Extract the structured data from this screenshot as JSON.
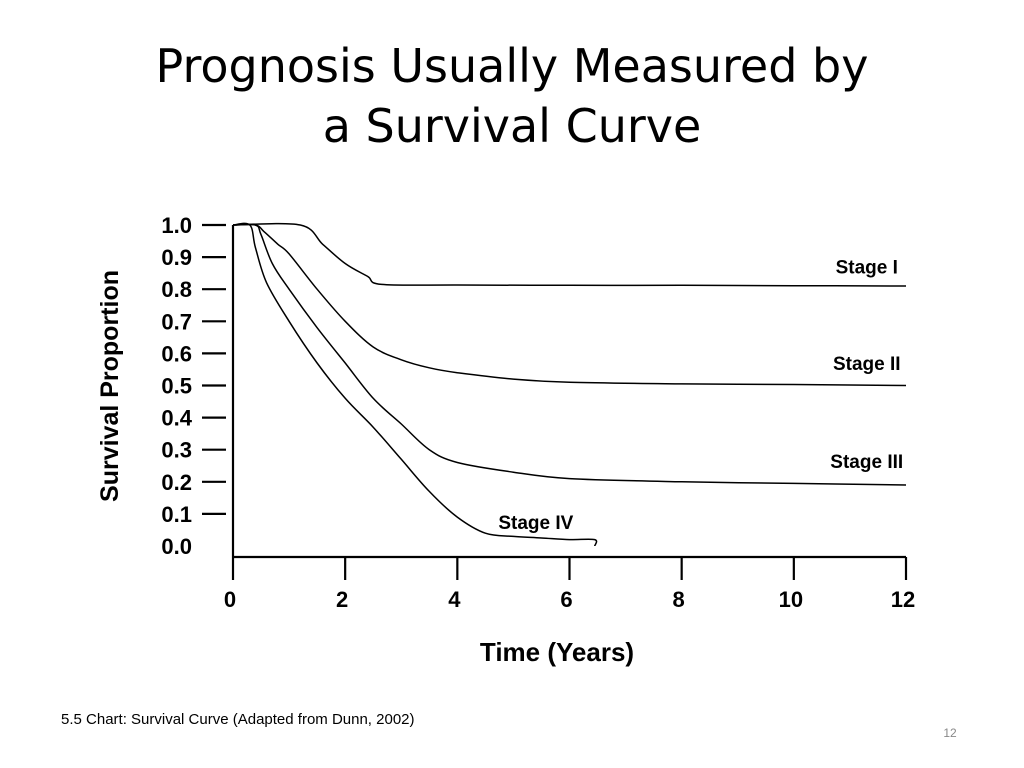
{
  "slide": {
    "title_lines": [
      "Prognosis Usually Measured by",
      "a Survival Curve"
    ],
    "caption": "5.5  Chart: Survival Curve (Adapted from Dunn, 2002)",
    "page_number": "12"
  },
  "chart_data": {
    "type": "line",
    "xlabel": "Time (Years)",
    "ylabel": "Survival Proportion",
    "xlim": [
      0,
      12
    ],
    "ylim": [
      0,
      1
    ],
    "x_ticks": [
      "0",
      "2",
      "4",
      "6",
      "8",
      "10",
      "12"
    ],
    "y_ticks": [
      "0.0",
      "0.1",
      "0.2",
      "0.3",
      "0.4",
      "0.5",
      "0.6",
      "0.7",
      "0.8",
      "0.9",
      "1.0"
    ],
    "grid": false,
    "line_color": "#000000",
    "series": [
      {
        "name": "Stage I",
        "x": [
          0,
          1.2,
          1.6,
          2.0,
          2.4,
          2.65,
          4,
          6,
          8,
          10,
          12
        ],
        "y": [
          1.0,
          1.0,
          0.94,
          0.88,
          0.84,
          0.815,
          0.813,
          0.812,
          0.812,
          0.811,
          0.81
        ]
      },
      {
        "name": "Stage II",
        "x": [
          0,
          0.4,
          0.55,
          0.8,
          1.0,
          1.5,
          2.0,
          2.5,
          3.0,
          3.5,
          4.0,
          5.0,
          6.0,
          8.0,
          10.0,
          12.0
        ],
        "y": [
          1.0,
          1.0,
          0.98,
          0.94,
          0.91,
          0.8,
          0.7,
          0.62,
          0.58,
          0.555,
          0.54,
          0.52,
          0.51,
          0.505,
          0.503,
          0.5
        ]
      },
      {
        "name": "Stage III",
        "x": [
          0,
          0.4,
          0.5,
          0.7,
          1.0,
          1.5,
          2.0,
          2.5,
          3.0,
          3.5,
          4.0,
          5.0,
          6.0,
          8.0,
          10.0,
          12.0
        ],
        "y": [
          1.0,
          1.0,
          0.97,
          0.88,
          0.8,
          0.68,
          0.57,
          0.46,
          0.38,
          0.3,
          0.26,
          0.23,
          0.21,
          0.2,
          0.195,
          0.19
        ]
      },
      {
        "name": "Stage IV",
        "x": [
          0,
          0.3,
          0.4,
          0.6,
          1.0,
          1.5,
          2.0,
          2.5,
          3.0,
          3.5,
          4.0,
          4.5,
          5.0,
          5.5,
          6.0,
          6.45,
          6.45
        ],
        "y": [
          1.0,
          1.0,
          0.93,
          0.82,
          0.7,
          0.57,
          0.46,
          0.37,
          0.27,
          0.17,
          0.09,
          0.04,
          0.03,
          0.025,
          0.02,
          0.02,
          0.0
        ]
      }
    ],
    "series_label_positions": [
      {
        "name": "Stage I",
        "x": 11.3,
        "y": 0.87
      },
      {
        "name": "Stage II",
        "x": 11.3,
        "y": 0.57
      },
      {
        "name": "Stage III",
        "x": 11.3,
        "y": 0.265
      },
      {
        "name": "Stage IV",
        "x": 5.4,
        "y": 0.075
      }
    ]
  }
}
